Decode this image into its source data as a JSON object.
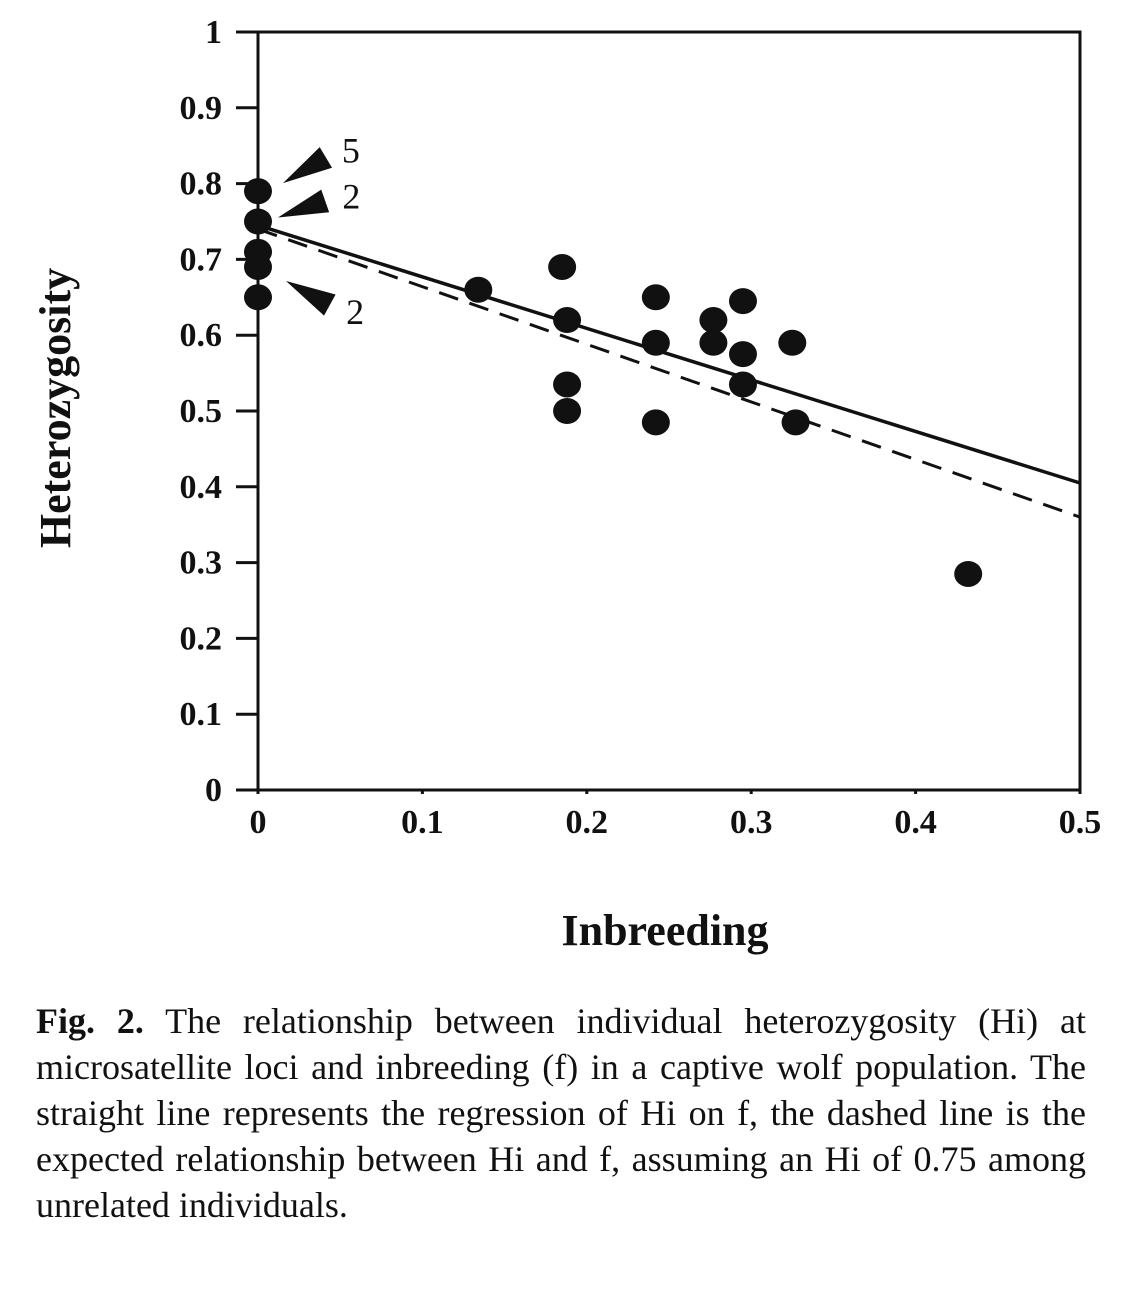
{
  "chart_data": {
    "type": "scatter",
    "xlabel": "Inbreeding",
    "ylabel": "Heterozygosity",
    "xlim": [
      0,
      0.5
    ],
    "ylim": [
      0,
      1
    ],
    "x_ticks": [
      "0",
      "0.1",
      "0.2",
      "0.3",
      "0.4",
      "0.5"
    ],
    "y_ticks": [
      "0",
      "0.1",
      "0.2",
      "0.3",
      "0.4",
      "0.5",
      "0.6",
      "0.7",
      "0.8",
      "0.9",
      "1"
    ],
    "grid": false,
    "points": [
      {
        "x": 0.0,
        "y": 0.79
      },
      {
        "x": 0.0,
        "y": 0.75
      },
      {
        "x": 0.0,
        "y": 0.71
      },
      {
        "x": 0.0,
        "y": 0.69
      },
      {
        "x": 0.0,
        "y": 0.65
      },
      {
        "x": 0.134,
        "y": 0.66
      },
      {
        "x": 0.185,
        "y": 0.69
      },
      {
        "x": 0.188,
        "y": 0.62
      },
      {
        "x": 0.188,
        "y": 0.535
      },
      {
        "x": 0.188,
        "y": 0.5
      },
      {
        "x": 0.242,
        "y": 0.65
      },
      {
        "x": 0.242,
        "y": 0.59
      },
      {
        "x": 0.242,
        "y": 0.485
      },
      {
        "x": 0.277,
        "y": 0.62
      },
      {
        "x": 0.277,
        "y": 0.59
      },
      {
        "x": 0.295,
        "y": 0.645
      },
      {
        "x": 0.295,
        "y": 0.575
      },
      {
        "x": 0.295,
        "y": 0.535
      },
      {
        "x": 0.325,
        "y": 0.59
      },
      {
        "x": 0.327,
        "y": 0.485
      },
      {
        "x": 0.432,
        "y": 0.285
      }
    ],
    "regression_line": {
      "x": [
        0,
        0.5
      ],
      "y": [
        0.745,
        0.405
      ]
    },
    "expected_line": {
      "x": [
        0,
        0.5
      ],
      "y": [
        0.74,
        0.36
      ]
    },
    "annotations": [
      {
        "label": "5",
        "x": 0.0,
        "y": 0.79
      },
      {
        "label": "2",
        "x": 0.0,
        "y": 0.75
      },
      {
        "label": "2",
        "x": 0.0,
        "y": 0.69
      }
    ]
  },
  "caption": {
    "fig_label": "Fig. 2.",
    "text": "The relationship between individual heterozygosity (Hi) at microsatellite loci and inbreeding (f) in a captive wolf population. The straight line represents the regression of Hi on f, the dashed line is the expected relationship between Hi and f, assuming an Hi of 0.75 among unrelated individuals."
  }
}
